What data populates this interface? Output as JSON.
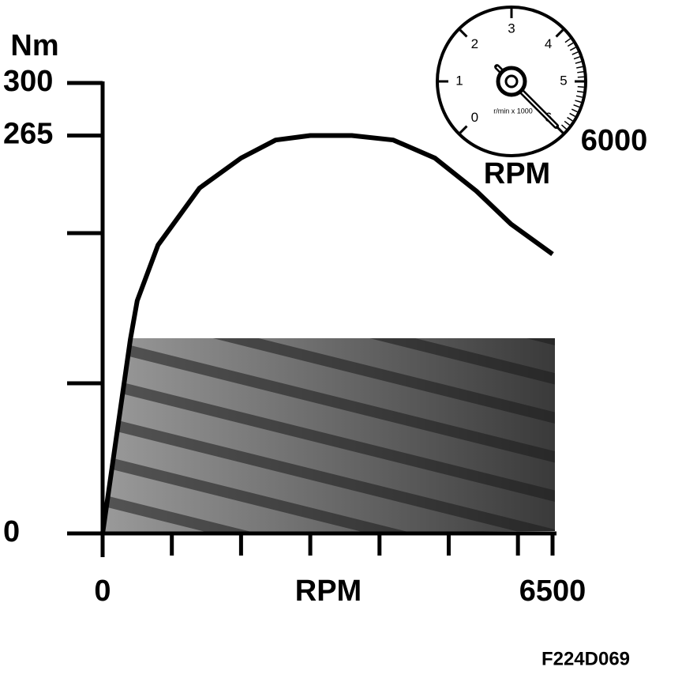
{
  "chart_data": {
    "type": "line",
    "y_title": "Nm",
    "x_title": "RPM",
    "caption": "F224D069",
    "x": [
      0,
      400,
      500,
      800,
      1400,
      2000,
      2500,
      3000,
      3600,
      4200,
      4800,
      5400,
      5900,
      6500
    ],
    "values": [
      0,
      129,
      155,
      192,
      230,
      250,
      262,
      265,
      265,
      262,
      250,
      228,
      206,
      186
    ],
    "color": "#000000",
    "xlim": [
      0,
      6500
    ],
    "xticks": [
      0,
      6500
    ],
    "minor_xticks": [
      1000,
      2000,
      3000,
      4000,
      5000,
      6000
    ],
    "ylim": [
      0,
      300
    ],
    "yticks": [
      0,
      265,
      300
    ],
    "minor_yticks": [
      100,
      200
    ],
    "gauge": {
      "range": [
        0,
        6
      ],
      "ticks": [
        0,
        1,
        2,
        3,
        4,
        5,
        6
      ],
      "unit": "r/min x 1000",
      "value": 6000,
      "value_label": "6000",
      "title": "RPM"
    }
  }
}
